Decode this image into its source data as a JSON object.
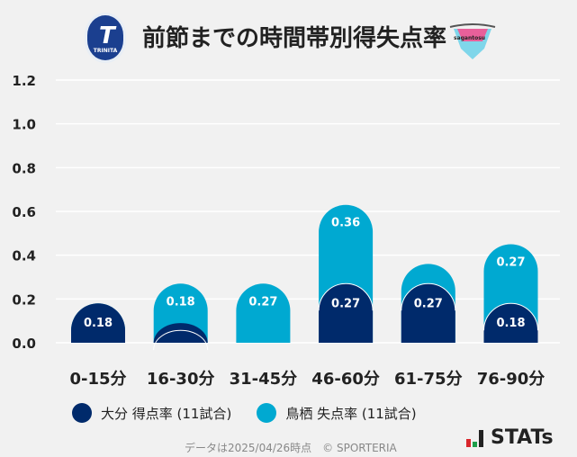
{
  "title": "前節までの時間帯別得失点率",
  "logos": {
    "home": "TRINITA",
    "away": "sagantosu"
  },
  "chart_data": {
    "type": "bar",
    "stacked": true,
    "title": "前節までの時間帯別得失点率",
    "categories": [
      "0-15分",
      "16-30分",
      "31-45分",
      "46-60分",
      "61-75分",
      "76-90分"
    ],
    "series": [
      {
        "name": "大分 得点率 (11試合)",
        "color": "#002a6b",
        "values": [
          0.18,
          0.09,
          0,
          0.27,
          0.27,
          0.18
        ],
        "labels": [
          "0.18",
          "",
          "",
          "0.27",
          "0.27",
          "0.18"
        ]
      },
      {
        "name": "鳥栖 失点率 (11試合)",
        "color": "#00a9d1",
        "values": [
          0,
          0.18,
          0.27,
          0.36,
          0.09,
          0.27
        ],
        "labels": [
          "",
          "0.18",
          "0.27",
          "0.36",
          "",
          "0.27"
        ]
      }
    ],
    "yticks": [
      "0.0",
      "0.2",
      "0.4",
      "0.6",
      "0.8",
      "1.0",
      "1.2"
    ],
    "ylim": [
      0,
      1.2
    ],
    "grid": true,
    "legend_position": "bottom"
  },
  "footer": "データは2025/04/26時点　© SPORTERIA",
  "brand": "STATs"
}
